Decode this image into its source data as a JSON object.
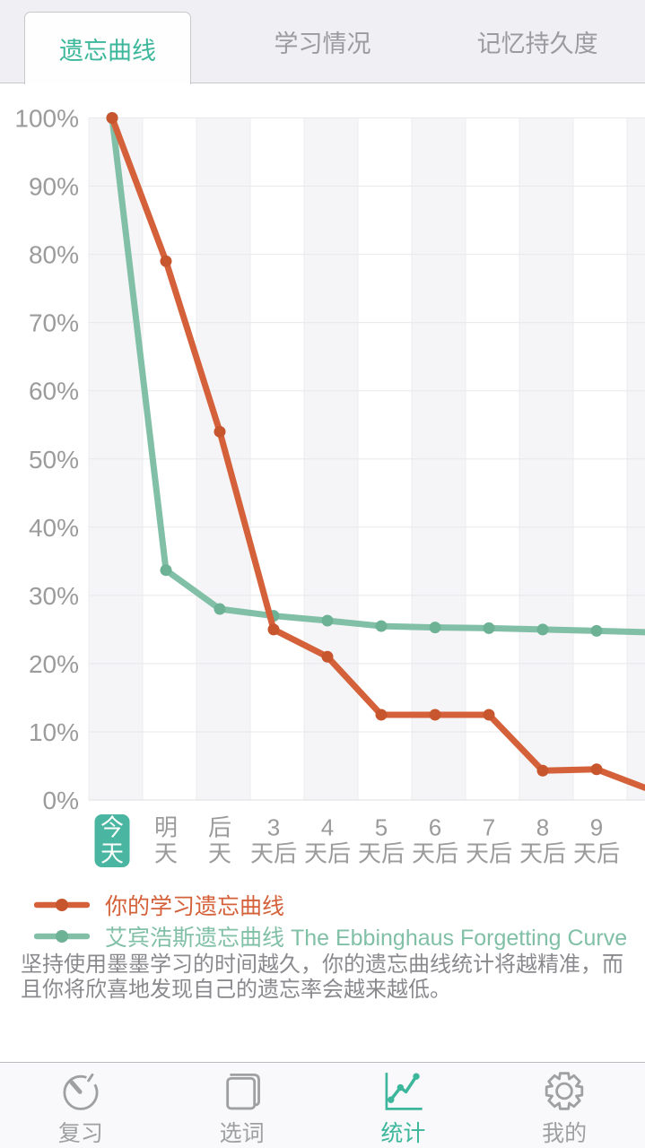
{
  "header": {
    "tabs": [
      {
        "label": "遗忘曲线",
        "active": true
      },
      {
        "label": "学习情况",
        "active": false
      },
      {
        "label": "记忆持久度",
        "active": false
      }
    ]
  },
  "chart_data": {
    "type": "line",
    "categories": [
      "今天",
      "明天",
      "后天",
      "3天后",
      "4天后",
      "5天后",
      "6天后",
      "7天后",
      "8天后",
      "9天后"
    ],
    "categories_two_line": [
      [
        "今",
        "天"
      ],
      [
        "明",
        "天"
      ],
      [
        "后",
        "天"
      ],
      [
        "3",
        "天后"
      ],
      [
        "4",
        "天后"
      ],
      [
        "5",
        "天后"
      ],
      [
        "6",
        "天后"
      ],
      [
        "7",
        "天后"
      ],
      [
        "8",
        "天后"
      ],
      [
        "9",
        "天后"
      ]
    ],
    "highlighted_category": {
      "index": 0,
      "label": "今天",
      "bg": "#4ab5a0",
      "text_color": "#ffffff"
    },
    "y_ticks": [
      "0%",
      "10%",
      "20%",
      "30%",
      "40%",
      "50%",
      "60%",
      "70%",
      "80%",
      "90%",
      "100%"
    ],
    "ylim": [
      0,
      100
    ],
    "grid": true,
    "legend_position": "bottom",
    "series": [
      {
        "name": "你的学习遗忘曲线",
        "color": "#d4613a",
        "dot_color": "#c7552e",
        "values": [
          100,
          79,
          54,
          25,
          21,
          12.5,
          12.5,
          12.5,
          4.3,
          4.5
        ],
        "edge_value": 1.8
      },
      {
        "name": "艾宾浩斯遗忘曲线 The Ebbinghaus Forgetting Curve",
        "color": "#81c0a7",
        "dot_color": "#6db295",
        "values": [
          100,
          33.7,
          28,
          27,
          26.3,
          25.5,
          25.3,
          25.2,
          25,
          24.8
        ],
        "edge_value": 24.6
      }
    ],
    "style": {
      "band_fill": "#f5f5f7",
      "band_alt": "#ffffff",
      "band_line": "#ececef",
      "grid_color": "#e8e8eb",
      "baseline_color": "#dfdfe2",
      "axis_label_color": "#9b9b9b",
      "x_label_color": "#9b9b9b"
    }
  },
  "description": {
    "lines": [
      "坚持使用墨墨学习的时间越久，你的遗忘曲线统计将越精准，而",
      "且你将欣喜地发现自己的遗忘率会越来越低。"
    ]
  },
  "nav": {
    "active_color": "#3db79b",
    "inactive_color": "#9ea0a1",
    "items": [
      {
        "label": "复习",
        "icon": "stopwatch-icon",
        "active": false
      },
      {
        "label": "选词",
        "icon": "book-icon",
        "active": false
      },
      {
        "label": "统计",
        "icon": "line-chart-icon",
        "active": true
      },
      {
        "label": "我的",
        "icon": "gear-icon",
        "active": false
      }
    ]
  }
}
